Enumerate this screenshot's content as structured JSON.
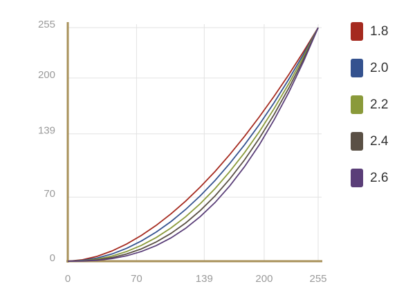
{
  "chart_data": {
    "type": "line",
    "x": [
      0,
      15,
      30,
      45,
      60,
      75,
      90,
      105,
      120,
      135,
      150,
      165,
      180,
      195,
      210,
      225,
      240,
      255
    ],
    "series": [
      {
        "name": "1.8",
        "color": "#a52a1f",
        "values": [
          0,
          1.6,
          5.4,
          11.2,
          18.8,
          28.2,
          39.1,
          51.6,
          65.6,
          81.1,
          98.0,
          116.5,
          136.3,
          157.5,
          179.9,
          203.6,
          228.7,
          255
        ]
      },
      {
        "name": "2.0",
        "color": "#34528f",
        "values": [
          0,
          0.9,
          3.5,
          7.9,
          14.1,
          22.1,
          31.8,
          43.2,
          56.5,
          71.5,
          88.2,
          106.8,
          127.1,
          149.1,
          172.9,
          198.5,
          225.9,
          255
        ]
      },
      {
        "name": "2.2",
        "color": "#8a9a3a",
        "values": [
          0,
          0.5,
          2.3,
          5.6,
          10.6,
          17.3,
          25.8,
          36.2,
          48.5,
          62.9,
          79.3,
          97.9,
          118.5,
          141.3,
          166.4,
          193.7,
          223.3,
          255
        ]
      },
      {
        "name": "2.4",
        "color": "#5a5045",
        "values": [
          0,
          0.3,
          1.5,
          4.0,
          7.9,
          13.5,
          21.0,
          30.3,
          41.7,
          55.4,
          71.3,
          89.8,
          110.6,
          134.1,
          160.0,
          188.9,
          220.5,
          255
        ]
      },
      {
        "name": "2.6",
        "color": "#5a3e78",
        "values": [
          0,
          0.2,
          1.0,
          2.8,
          5.9,
          10.6,
          17.0,
          25.4,
          35.9,
          48.8,
          64.1,
          82.3,
          103.2,
          127.0,
          154.1,
          184.2,
          217.8,
          255
        ]
      }
    ],
    "xlim": [
      0,
      255
    ],
    "ylim": [
      0,
      255
    ],
    "xticks": [
      0,
      70,
      139,
      200,
      255
    ],
    "yticks": [
      0,
      70,
      139,
      200,
      255
    ],
    "grid": true,
    "legend": "right"
  }
}
